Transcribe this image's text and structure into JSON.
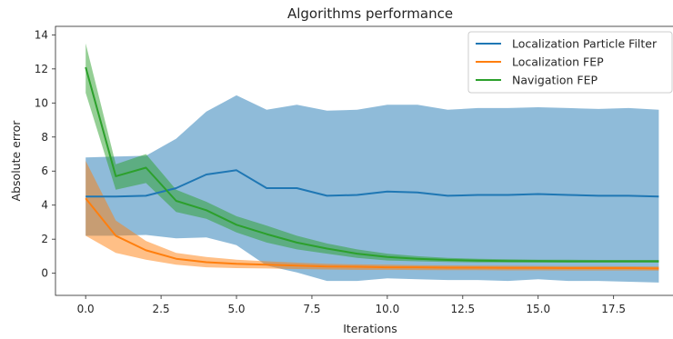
{
  "chart_data": {
    "type": "line",
    "title": "Algorithms performance",
    "xlabel": "Iterations",
    "ylabel": "Absolute error",
    "xlim": [
      -1,
      19.5
    ],
    "ylim": [
      -1.3,
      14.5
    ],
    "xticks": [
      0.0,
      2.5,
      5.0,
      7.5,
      10.0,
      12.5,
      15.0,
      17.5
    ],
    "xtick_labels": [
      "0.0",
      "2.5",
      "5.0",
      "7.5",
      "10.0",
      "12.5",
      "15.0",
      "17.5"
    ],
    "yticks": [
      0,
      2,
      4,
      6,
      8,
      10,
      12,
      14
    ],
    "ytick_labels": [
      "0",
      "2",
      "4",
      "6",
      "8",
      "10",
      "12",
      "14"
    ],
    "grid": false,
    "legend_position": "top-right",
    "x": [
      0,
      1,
      2,
      3,
      4,
      5,
      6,
      7,
      8,
      9,
      10,
      11,
      12,
      13,
      14,
      15,
      16,
      17,
      18,
      19
    ],
    "series": [
      {
        "name": "Localization Particle Filter",
        "color": "#1f77b4",
        "values": [
          4.5,
          4.5,
          4.55,
          5.0,
          5.8,
          6.05,
          5.0,
          5.0,
          4.55,
          4.6,
          4.8,
          4.75,
          4.55,
          4.6,
          4.6,
          4.65,
          4.6,
          4.55,
          4.55,
          4.5
        ],
        "band_upper": [
          6.8,
          6.85,
          6.9,
          7.9,
          9.5,
          10.45,
          9.6,
          9.9,
          9.55,
          9.6,
          9.9,
          9.9,
          9.6,
          9.7,
          9.7,
          9.75,
          9.7,
          9.65,
          9.7,
          9.6
        ],
        "band_lower": [
          2.2,
          2.2,
          2.25,
          2.05,
          2.1,
          1.65,
          0.45,
          0.05,
          -0.45,
          -0.45,
          -0.3,
          -0.35,
          -0.4,
          -0.4,
          -0.45,
          -0.35,
          -0.45,
          -0.45,
          -0.5,
          -0.55
        ]
      },
      {
        "name": "Localization FEP",
        "color": "#ff7f0e",
        "values": [
          4.4,
          2.2,
          1.35,
          0.85,
          0.65,
          0.55,
          0.5,
          0.45,
          0.4,
          0.38,
          0.35,
          0.35,
          0.33,
          0.33,
          0.32,
          0.32,
          0.3,
          0.3,
          0.3,
          0.28
        ],
        "band_upper": [
          6.6,
          3.1,
          1.9,
          1.2,
          0.95,
          0.8,
          0.7,
          0.62,
          0.55,
          0.52,
          0.5,
          0.48,
          0.46,
          0.45,
          0.44,
          0.43,
          0.42,
          0.42,
          0.41,
          0.4
        ],
        "band_lower": [
          2.2,
          1.2,
          0.8,
          0.5,
          0.35,
          0.3,
          0.28,
          0.25,
          0.22,
          0.2,
          0.2,
          0.19,
          0.18,
          0.18,
          0.17,
          0.17,
          0.16,
          0.16,
          0.16,
          0.15
        ]
      },
      {
        "name": "Navigation FEP",
        "color": "#2ca02c",
        "values": [
          12.1,
          5.7,
          6.2,
          4.25,
          3.7,
          2.85,
          2.3,
          1.8,
          1.45,
          1.15,
          0.95,
          0.85,
          0.78,
          0.74,
          0.72,
          0.71,
          0.7,
          0.7,
          0.7,
          0.7
        ],
        "band_upper": [
          13.5,
          6.4,
          7.0,
          4.9,
          4.2,
          3.35,
          2.8,
          2.2,
          1.75,
          1.4,
          1.15,
          1.0,
          0.9,
          0.85,
          0.82,
          0.8,
          0.79,
          0.78,
          0.78,
          0.78
        ],
        "band_lower": [
          10.6,
          4.9,
          5.3,
          3.6,
          3.2,
          2.4,
          1.8,
          1.4,
          1.15,
          0.9,
          0.75,
          0.7,
          0.66,
          0.64,
          0.63,
          0.62,
          0.62,
          0.62,
          0.62,
          0.62
        ]
      }
    ]
  }
}
